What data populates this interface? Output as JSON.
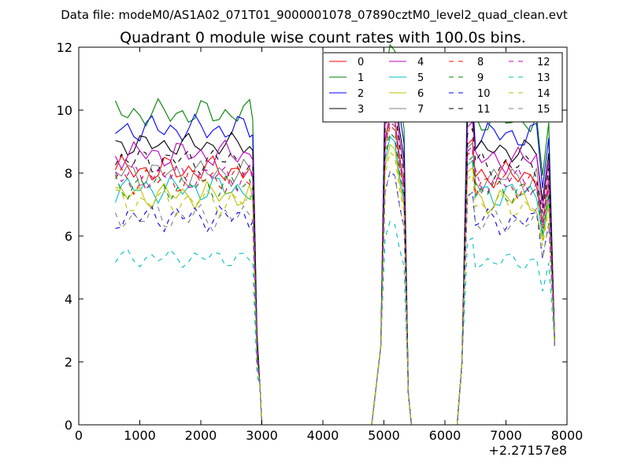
{
  "chart_data": {
    "type": "line",
    "supertitle": "Data file: modeM0/AS1A02_071T01_9000001078_07890cztM0_level2_quad_clean.evt",
    "title": "Quadrant 0 module wise count rates with 100.0s bins.",
    "xlabel": "",
    "ylabel": "",
    "xlim": [
      0,
      8000
    ],
    "ylim": [
      0,
      12
    ],
    "x_offset_label": "+2.27157e8",
    "x_ticks": [
      0,
      1000,
      2000,
      3000,
      4000,
      5000,
      6000,
      7000,
      8000
    ],
    "y_ticks": [
      0,
      2,
      4,
      6,
      8,
      10,
      12
    ],
    "legend_position": "top-right",
    "legend_columns": 4,
    "series": [
      {
        "name": "0",
        "color": "#ff0000",
        "dash": "solid",
        "base": 8.1,
        "amp": 0.3,
        "ph": 1
      },
      {
        "name": "1",
        "color": "#008000",
        "dash": "solid",
        "base": 9.9,
        "amp": 0.3,
        "ph": 2
      },
      {
        "name": "2",
        "color": "#0000ff",
        "dash": "solid",
        "base": 9.4,
        "amp": 0.3,
        "ph": 3
      },
      {
        "name": "3",
        "color": "#000000",
        "dash": "solid",
        "base": 8.9,
        "amp": 0.25,
        "ph": 4
      },
      {
        "name": "4",
        "color": "#bf00bf",
        "dash": "solid",
        "base": 8.6,
        "amp": 0.3,
        "ph": 5
      },
      {
        "name": "5",
        "color": "#00bfbf",
        "dash": "solid",
        "base": 7.5,
        "amp": 0.3,
        "ph": 6
      },
      {
        "name": "6",
        "color": "#bfbf00",
        "dash": "solid",
        "base": 7.3,
        "amp": 0.3,
        "ph": 7
      },
      {
        "name": "7",
        "color": "#808080",
        "dash": "solid",
        "base": 8.0,
        "amp": 0.3,
        "ph": 8
      },
      {
        "name": "8",
        "color": "#ff0000",
        "dash": "dashed",
        "base": 7.8,
        "amp": 0.3,
        "ph": 9
      },
      {
        "name": "9",
        "color": "#008000",
        "dash": "dashed",
        "base": 7.6,
        "amp": 0.3,
        "ph": 10
      },
      {
        "name": "10",
        "color": "#0000ff",
        "dash": "dashed",
        "base": 6.6,
        "amp": 0.3,
        "ph": 11
      },
      {
        "name": "11",
        "color": "#000000",
        "dash": "dashed",
        "base": 8.4,
        "amp": 0.3,
        "ph": 12
      },
      {
        "name": "12",
        "color": "#bf00bf",
        "dash": "dashed",
        "base": 7.9,
        "amp": 0.3,
        "ph": 13
      },
      {
        "name": "13",
        "color": "#00bfbf",
        "dash": "dashed",
        "base": 5.3,
        "amp": 0.2,
        "ph": 14
      },
      {
        "name": "14",
        "color": "#bfbf00",
        "dash": "dashed",
        "base": 7.1,
        "amp": 0.3,
        "ph": 15
      },
      {
        "name": "15",
        "color": "#808080",
        "dash": "dashed",
        "base": 6.6,
        "amp": 0.3,
        "ph": 16
      }
    ]
  }
}
